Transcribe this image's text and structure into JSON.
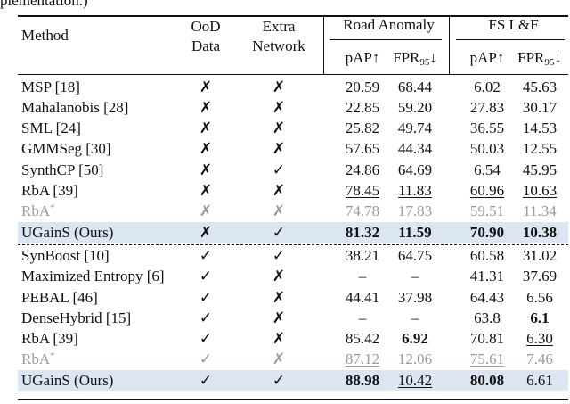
{
  "caption_fragment": "plementation.)",
  "header": {
    "method": "Method",
    "ood": [
      "OoD",
      "Data"
    ],
    "extra": [
      "Extra",
      "Network"
    ],
    "groups": [
      "Road Anomaly",
      "FS L&F"
    ],
    "columns": [
      {
        "text": "pAP↑"
      },
      {
        "text": "FPR",
        "sub": "95",
        "post": "↓"
      },
      {
        "text": "pAP↑"
      },
      {
        "text": "FPR",
        "sub": "95",
        "post": "↓"
      }
    ]
  },
  "sections": [
    {
      "rows": [
        {
          "method": "MSP [18]",
          "ood": "✗",
          "extra": "✗",
          "values": [
            "20.59",
            "68.44",
            "6.02",
            "45.63"
          ],
          "bold": [],
          "underline": [],
          "muted": false,
          "highlight": false
        },
        {
          "method": "Mahalanobis [28]",
          "ood": "✗",
          "extra": "✗",
          "values": [
            "22.85",
            "59.20",
            "27.83",
            "30.17"
          ],
          "bold": [],
          "underline": [],
          "muted": false,
          "highlight": false
        },
        {
          "method": "SML [24]",
          "ood": "✗",
          "extra": "✗",
          "values": [
            "25.82",
            "49.74",
            "36.55",
            "14.53"
          ],
          "bold": [],
          "underline": [],
          "muted": false,
          "highlight": false
        },
        {
          "method": "GMMSeg [30]",
          "ood": "✗",
          "extra": "✗",
          "values": [
            "57.65",
            "44.34",
            "50.03",
            "12.55"
          ],
          "bold": [],
          "underline": [],
          "muted": false,
          "highlight": false
        },
        {
          "method": "SynthCP [50]",
          "ood": "✗",
          "extra": "✓",
          "values": [
            "24.86",
            "64.69",
            "6.54",
            "45.95"
          ],
          "bold": [],
          "underline": [],
          "muted": false,
          "highlight": false
        },
        {
          "method": "RbA [39]",
          "ood": "✗",
          "extra": "✗",
          "values": [
            "78.45",
            "11.83",
            "60.96",
            "10.63"
          ],
          "bold": [],
          "underline": [
            0,
            1,
            2,
            3
          ],
          "muted": false,
          "highlight": false
        },
        {
          "method": "RbA",
          "sup": "*",
          "ood": "✗",
          "extra": "✗",
          "values": [
            "74.78",
            "17.83",
            "59.51",
            "11.34"
          ],
          "bold": [],
          "underline": [],
          "muted": true,
          "highlight": false
        },
        {
          "method": "UGainS (Ours)",
          "ood": "✗",
          "extra": "✓",
          "values": [
            "81.32",
            "11.59",
            "70.90",
            "10.38"
          ],
          "bold": [
            0,
            1,
            2,
            3
          ],
          "underline": [],
          "muted": false,
          "highlight": true
        }
      ]
    },
    {
      "rows": [
        {
          "method": "SynBoost [10]",
          "ood": "✓",
          "extra": "✓",
          "values": [
            "38.21",
            "64.75",
            "60.58",
            "31.02"
          ],
          "bold": [],
          "underline": [],
          "muted": false,
          "highlight": false
        },
        {
          "method": "Maximized Entropy [6]",
          "ood": "✓",
          "extra": "✗",
          "values": [
            "–",
            "–",
            "41.31",
            "37.69"
          ],
          "bold": [],
          "underline": [],
          "muted": false,
          "highlight": false
        },
        {
          "method": "PEBAL [46]",
          "ood": "✓",
          "extra": "✗",
          "values": [
            "44.41",
            "37.98",
            "64.43",
            "6.56"
          ],
          "bold": [],
          "underline": [],
          "muted": false,
          "highlight": false
        },
        {
          "method": "DenseHybrid [15]",
          "ood": "✓",
          "extra": "✗",
          "values": [
            "–",
            "–",
            "63.8",
            "6.1"
          ],
          "bold": [
            3
          ],
          "underline": [],
          "muted": false,
          "highlight": false
        },
        {
          "method": "RbA [39]",
          "ood": "✓",
          "extra": "✗",
          "values": [
            "85.42",
            "6.92",
            "70.81",
            "6.30"
          ],
          "bold": [
            1
          ],
          "underline": [
            3
          ],
          "muted": false,
          "highlight": false
        },
        {
          "method": "RbA",
          "sup": "*",
          "ood": "✓",
          "extra": "✗",
          "values": [
            "87.12",
            "12.06",
            "75.61",
            "7.46"
          ],
          "bold": [],
          "underline": [
            0,
            2
          ],
          "muted": true,
          "highlight": false
        },
        {
          "method": "UGainS (Ours)",
          "ood": "✓",
          "extra": "✓",
          "values": [
            "88.98",
            "10.42",
            "80.08",
            "6.61"
          ],
          "bold": [
            0,
            2
          ],
          "underline": [
            1
          ],
          "muted": false,
          "highlight": true
        }
      ]
    }
  ]
}
